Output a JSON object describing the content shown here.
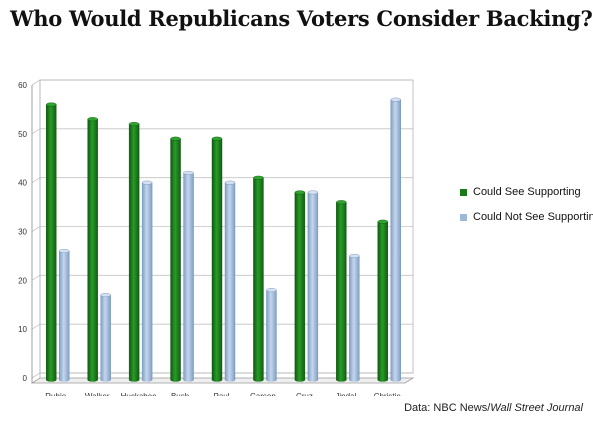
{
  "title": "Who Would Republicans Voters Consider Backing?",
  "source": {
    "prefix": "Data: NBC News/",
    "italic": "Wall Street Journal"
  },
  "chart_data": {
    "type": "bar",
    "title": "Who Would Republicans Voters Consider Backing?",
    "categories": [
      "Rubio",
      "Walker",
      "Huckabee",
      "Bush",
      "Paul",
      "Carson",
      "Cruz",
      "Jindal",
      "Christie"
    ],
    "series": [
      {
        "name": "Could See Supporting",
        "color": "#1a7a1a",
        "values": [
          56,
          53,
          52,
          49,
          49,
          41,
          38,
          36,
          32
        ]
      },
      {
        "name": "Could Not See Supporting",
        "color": "#9db8d9",
        "values": [
          26,
          17,
          40,
          42,
          40,
          18,
          38,
          25,
          57
        ]
      }
    ],
    "ylim": [
      0,
      60
    ],
    "yticks": [
      0,
      10,
      20,
      30,
      40,
      50,
      60
    ],
    "grid": true,
    "legend": "right",
    "xlabel": "",
    "ylabel": ""
  }
}
